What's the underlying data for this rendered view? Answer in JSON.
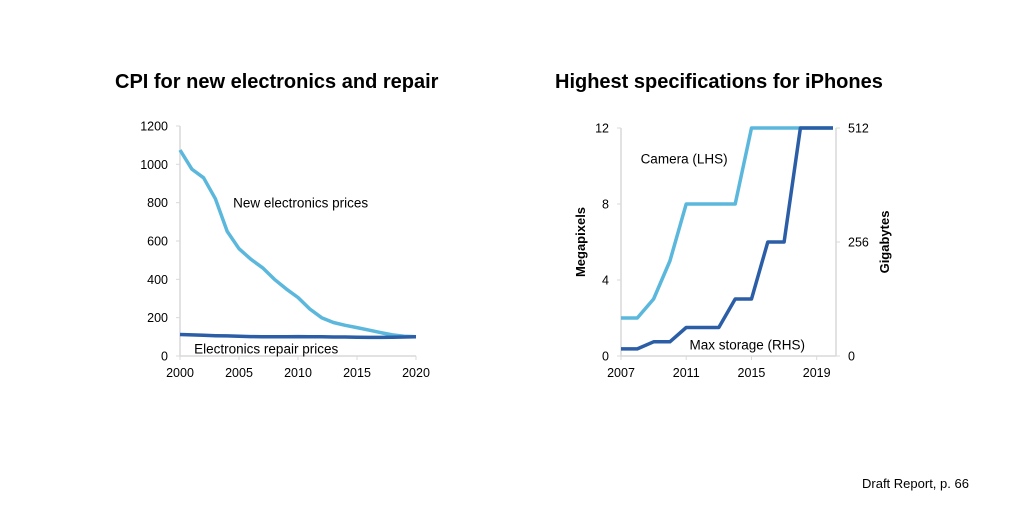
{
  "footer": "Draft Report, p. 66",
  "colors": {
    "light": "#5bb8dc",
    "dark": "#2b5ea6",
    "axis": "#d9d9d9"
  },
  "chart_data": [
    {
      "type": "line",
      "title": "CPI for new electronics and repair",
      "xlabel": "",
      "ylabel": "",
      "x": [
        2000,
        2001,
        2002,
        2003,
        2004,
        2005,
        2006,
        2007,
        2008,
        2009,
        2010,
        2011,
        2012,
        2013,
        2014,
        2015,
        2016,
        2017,
        2018,
        2019,
        2020
      ],
      "xlim": [
        2000,
        2020
      ],
      "xticks": [
        2000,
        2005,
        2010,
        2015,
        2020
      ],
      "ylim": [
        0,
        1200
      ],
      "yticks": [
        0,
        200,
        400,
        600,
        800,
        1000,
        1200
      ],
      "grid": false,
      "series": [
        {
          "name": "New electronics prices",
          "color": "#5bb8dc",
          "values": [
            1075,
            975,
            930,
            820,
            650,
            560,
            505,
            460,
            400,
            350,
            305,
            245,
            200,
            175,
            160,
            148,
            135,
            122,
            110,
            103,
            100
          ]
        },
        {
          "name": "Electronics repair prices",
          "color": "#2b5ea6",
          "values": [
            112,
            110,
            108,
            106,
            105,
            103,
            101,
            100,
            100,
            100,
            101,
            100,
            100,
            99,
            99,
            98,
            97,
            97,
            98,
            99,
            100
          ]
        }
      ],
      "annotations": [
        {
          "text": "New electronics prices",
          "x": 2004.5,
          "y": 800
        },
        {
          "text": "Electronics repair prices",
          "x": 2001.2,
          "y": 40
        }
      ]
    },
    {
      "type": "line",
      "title": "Highest specifications for iPhones",
      "xlabel": "",
      "ylabel": "Megapixels",
      "y2label": "Gigabytes",
      "x": [
        2007,
        2008,
        2009,
        2010,
        2011,
        2012,
        2013,
        2014,
        2015,
        2016,
        2017,
        2018,
        2019,
        2020
      ],
      "xlim": [
        2007,
        2020
      ],
      "xticks": [
        2007,
        2011,
        2015,
        2019
      ],
      "ylim": [
        0,
        12
      ],
      "yticks": [
        0,
        4,
        8,
        12
      ],
      "y2lim": [
        0,
        512
      ],
      "y2ticks": [
        0,
        256,
        512
      ],
      "grid": false,
      "series": [
        {
          "name": "Camera (LHS)",
          "axis": "left",
          "color": "#5bb8dc",
          "values": [
            2,
            2,
            3,
            5,
            8,
            8,
            8,
            8,
            12,
            12,
            12,
            12,
            12,
            12
          ]
        },
        {
          "name": "Max storage (RHS)",
          "axis": "right",
          "color": "#2b5ea6",
          "values": [
            16,
            16,
            32,
            32,
            64,
            64,
            64,
            128,
            128,
            256,
            256,
            512,
            512,
            512
          ]
        }
      ],
      "annotations": [
        {
          "text": "Camera (LHS)",
          "x": 2008.2,
          "y": 10.4
        },
        {
          "text": "Max storage (RHS)",
          "x": 2011.2,
          "y": 0.6
        }
      ]
    }
  ]
}
